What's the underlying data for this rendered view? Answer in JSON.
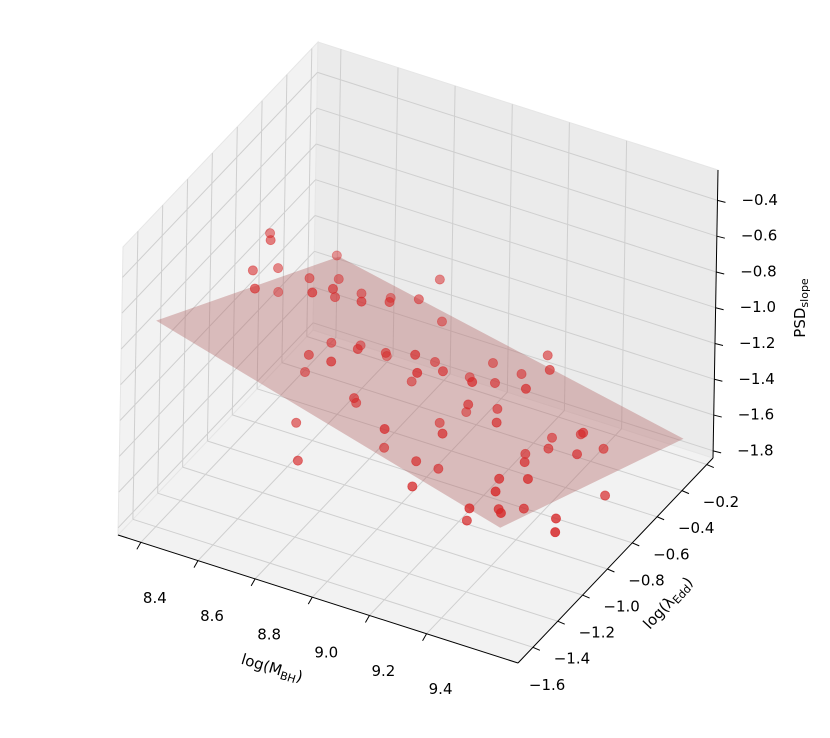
{
  "chart_data": {
    "type": "scatter3d",
    "xlabel": {
      "text": "log(M",
      "sub": "BH",
      "tail": ")"
    },
    "ylabel": {
      "text": "log(λ",
      "sub": "Edd",
      "tail": ")"
    },
    "zlabel": {
      "text": "PSD",
      "sub": "slope"
    },
    "xlim": [
      8.32,
      9.72
    ],
    "ylim": [
      -1.72,
      -0.15
    ],
    "zlim": [
      -1.84,
      -0.23
    ],
    "xticks": [
      8.4,
      8.6,
      8.8,
      {
        "value": 9,
        "label": "9.0"
      },
      9.2,
      9.4
    ],
    "yticks": [
      {
        "value": -1.6,
        "label": "−1.6"
      },
      {
        "value": -1.4,
        "label": "−1.4"
      },
      {
        "value": -1.2,
        "label": "−1.2"
      },
      {
        "value": -1.0,
        "label": "−1.0"
      },
      {
        "value": -0.8,
        "label": "−0.8"
      },
      {
        "value": -0.6,
        "label": "−0.6"
      },
      {
        "value": -0.4,
        "label": "−0.4"
      },
      {
        "value": -0.2,
        "label": "−0.2"
      }
    ],
    "zticks": [
      {
        "value": -1.8,
        "label": "−1.8"
      },
      {
        "value": -1.6,
        "label": "−1.6"
      },
      {
        "value": -1.4,
        "label": "−1.4"
      },
      {
        "value": -1.2,
        "label": "−1.2"
      },
      {
        "value": -1.0,
        "label": "−1.0"
      },
      {
        "value": -0.8,
        "label": "−0.8"
      },
      {
        "value": -0.6,
        "label": "−0.6"
      },
      {
        "value": -0.4,
        "label": "−0.4"
      }
    ],
    "grid": true,
    "surface": {
      "color": "#b5686a",
      "alpha": 0.4,
      "x": [
        8.44,
        9.65
      ],
      "y": [
        -1.72,
        -0.23
      ],
      "z": [
        [
          -0.58,
          -1.31
        ],
        [
          -1.12,
          -1.71
        ]
      ]
    },
    "points": {
      "color": "#d62728",
      "x": [
        8.5,
        8.6,
        8.54,
        8.53,
        8.65,
        8.43,
        8.64,
        8.53,
        8.64,
        8.82,
        8.85,
        8.73,
        8.72,
        8.92,
        8.72,
        8.92,
        8.92,
        8.89,
        8.9,
        8.74,
        8.72,
        8.92,
        8.63,
        8.72,
        8.91,
        8.91,
        8.71,
        9.11,
        8.98,
        9.11,
        9.22,
        8.9,
        9.0,
        9.31,
        9.19,
        9.08,
        9.18,
        9.27,
        9.38,
        9.4,
        8.9,
        8.81,
        8.7,
        9.11,
        8.91,
        9.0,
        9.21,
        9.2,
        8.99,
        9.2,
        9.3,
        8.81,
        9.12,
        9.1,
        9.21,
        9.41,
        9.3,
        9.4,
        9.51,
        9.5,
        9.29,
        9.38,
        9.39,
        9.5,
        9.48,
        9.47,
        9.58,
        9.41,
        9.3,
        9.41,
        9.52,
        9.4,
        9.61,
        9.71
      ],
      "y": [
        -0.94,
        -1.17,
        -1.17,
        -0.94,
        -1.41,
        -0.7,
        -0.94,
        -0.46,
        -0.7,
        -1.17,
        -1.41,
        -0.94,
        -0.7,
        -1.17,
        -0.46,
        -0.94,
        -0.7,
        -0.46,
        -0.46,
        -1.17,
        -0.94,
        -1.41,
        -0.94,
        -0.7,
        -1.17,
        -0.94,
        -0.46,
        -1.17,
        -0.7,
        -0.94,
        -1.41,
        -0.7,
        -0.46,
        -1.17,
        -0.7,
        -0.46,
        -0.46,
        -0.46,
        -0.7,
        -0.94,
        -1.17,
        -0.94,
        -1.17,
        -1.41,
        -0.94,
        -0.7,
        -1.17,
        -0.94,
        -0.46,
        -0.7,
        -0.94,
        -1.41,
        -1.17,
        -0.94,
        -1.41,
        -1.17,
        -0.7,
        -0.94,
        -1.17,
        -1.41,
        -0.46,
        -0.7,
        -0.46,
        -0.7,
        -0.7,
        -0.46,
        -0.7,
        -1.41,
        -1.17,
        -1.17,
        -1.41,
        -0.94,
        -1.17,
        -1.41
      ],
      "z": [
        -0.63,
        -0.45,
        -0.65,
        -0.81,
        -0.52,
        -1.17,
        -0.81,
        -1.09,
        -0.99,
        -0.61,
        -0.44,
        -0.87,
        -1.03,
        -0.63,
        -1.23,
        -0.8,
        -0.96,
        -1.04,
        -1.27,
        -1.02,
        -1.13,
        -0.79,
        -1.34,
        -1.32,
        -0.9,
        -1.09,
        -1.56,
        -0.83,
        -1.28,
        -1.09,
        -0.7,
        -1.43,
        -1.53,
        -0.88,
        -1.29,
        -1.41,
        -1.42,
        -1.27,
        -1.12,
        -1.04,
        -1.18,
        -1.42,
        -1.42,
        -1.07,
        -1.62,
        -1.61,
        -1.22,
        -1.23,
        -1.73,
        -1.43,
        -1.28,
        -1.4,
        -1.42,
        -1.64,
        -1.34,
        -1.37,
        -1.63,
        -1.45,
        -1.32,
        -1.22,
        -1.72,
        -1.56,
        -1.65,
        -1.41,
        -1.54,
        -1.69,
        -1.72,
        -1.36,
        -1.66,
        -1.54,
        -1.33,
        -1.71,
        -1.49,
        -1.34
      ]
    }
  }
}
